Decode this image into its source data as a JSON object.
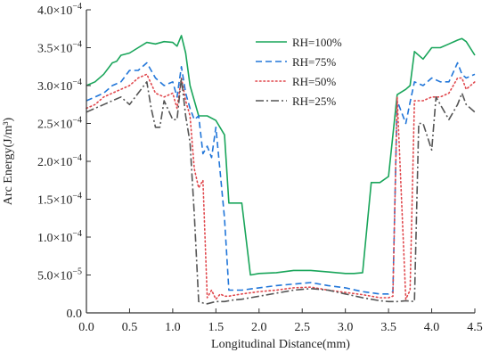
{
  "chart_data": {
    "type": "line",
    "title": "",
    "xlabel": "Longitudinal Distance(mm)",
    "ylabel": "Arc Energy(J/m³)",
    "xlim": [
      0.0,
      4.5
    ],
    "ylim": [
      0.0,
      0.0004
    ],
    "xticks": [
      {
        "value": 0.0,
        "label": "0.0"
      },
      {
        "value": 0.5,
        "label": "0.5"
      },
      {
        "value": 1.0,
        "label": "1.0"
      },
      {
        "value": 1.5,
        "label": "1.5"
      },
      {
        "value": 2.0,
        "label": "2.0"
      },
      {
        "value": 2.5,
        "label": "2.5"
      },
      {
        "value": 3.0,
        "label": "3.0"
      },
      {
        "value": 3.5,
        "label": "3.5"
      },
      {
        "value": 4.0,
        "label": "4.0"
      },
      {
        "value": 4.5,
        "label": "4.5"
      }
    ],
    "yticks": [
      {
        "value": 0.0,
        "mantissa": "0.0",
        "exponent": ""
      },
      {
        "value": 5e-05,
        "mantissa": "5.0×10",
        "exponent": "−5"
      },
      {
        "value": 0.0001,
        "mantissa": "1.0×10",
        "exponent": "−4"
      },
      {
        "value": 0.00015,
        "mantissa": "1.5×10",
        "exponent": "−4"
      },
      {
        "value": 0.0002,
        "mantissa": "2.0×10",
        "exponent": "−4"
      },
      {
        "value": 0.00025,
        "mantissa": "2.5×10",
        "exponent": "−4"
      },
      {
        "value": 0.0003,
        "mantissa": "3.0×10",
        "exponent": "−4"
      },
      {
        "value": 0.00035,
        "mantissa": "3.5×10",
        "exponent": "−4"
      },
      {
        "value": 0.0004,
        "mantissa": "4.0×10",
        "exponent": "−4"
      }
    ],
    "grid": false,
    "legend_position": "top-center",
    "series": [
      {
        "name": "RH=100%",
        "color": "#19a55a",
        "dash": "solid",
        "x": [
          0.0,
          0.1,
          0.2,
          0.3,
          0.35,
          0.4,
          0.5,
          0.6,
          0.7,
          0.8,
          0.9,
          1.0,
          1.05,
          1.1,
          1.15,
          1.2,
          1.3,
          1.4,
          1.5,
          1.6,
          1.65,
          1.7,
          1.8,
          1.9,
          2.0,
          2.2,
          2.4,
          2.6,
          2.8,
          3.0,
          3.1,
          3.2,
          3.3,
          3.4,
          3.5,
          3.6,
          3.7,
          3.75,
          3.8,
          3.9,
          4.0,
          4.1,
          4.2,
          4.3,
          4.35,
          4.4,
          4.5
        ],
        "values": [
          0.0003,
          0.000305,
          0.000315,
          0.00033,
          0.000332,
          0.00034,
          0.000343,
          0.00035,
          0.000357,
          0.000355,
          0.000358,
          0.000357,
          0.000352,
          0.000366,
          0.000343,
          0.0003,
          0.00026,
          0.00026,
          0.000254,
          0.000235,
          0.000145,
          0.000145,
          0.000145,
          5e-05,
          5.2e-05,
          5.3e-05,
          5.6e-05,
          5.6e-05,
          5.4e-05,
          5.2e-05,
          5.2e-05,
          5.3e-05,
          0.000172,
          0.000172,
          0.00018,
          0.000288,
          0.000295,
          0.0003,
          0.000345,
          0.000335,
          0.00035,
          0.00035,
          0.000355,
          0.00036,
          0.000362,
          0.000358,
          0.00034
        ]
      },
      {
        "name": "RH=75%",
        "color": "#2176d9",
        "dash": "dashed",
        "x": [
          0.0,
          0.1,
          0.2,
          0.3,
          0.4,
          0.5,
          0.6,
          0.7,
          0.8,
          0.9,
          1.0,
          1.05,
          1.1,
          1.15,
          1.2,
          1.25,
          1.3,
          1.35,
          1.4,
          1.45,
          1.5,
          1.55,
          1.6,
          1.65,
          1.7,
          1.8,
          2.0,
          2.2,
          2.4,
          2.6,
          2.8,
          3.0,
          3.2,
          3.4,
          3.5,
          3.55,
          3.6,
          3.7,
          3.75,
          3.8,
          3.9,
          4.0,
          4.1,
          4.2,
          4.3,
          4.35,
          4.4,
          4.5
        ],
        "values": [
          0.00028,
          0.000285,
          0.00029,
          0.0003,
          0.000305,
          0.00032,
          0.00032,
          0.00033,
          0.00031,
          0.0003,
          0.000305,
          0.000285,
          0.000325,
          0.00029,
          0.00027,
          0.000255,
          0.00026,
          0.00021,
          0.00022,
          0.000205,
          0.000245,
          0.000185,
          0.000125,
          3e-05,
          3e-05,
          3e-05,
          3.3e-05,
          3.6e-05,
          3.8e-05,
          4e-05,
          3.6e-05,
          3.3e-05,
          2.8e-05,
          2.5e-05,
          2.5e-05,
          2.8e-05,
          0.00028,
          0.00025,
          0.000278,
          0.000305,
          0.0003,
          0.00031,
          0.000305,
          0.000305,
          0.00033,
          0.000315,
          0.00031,
          0.000315
        ]
      },
      {
        "name": "RH=50%",
        "color": "#e0474c",
        "dash": "dotted",
        "x": [
          0.0,
          0.1,
          0.2,
          0.3,
          0.4,
          0.5,
          0.6,
          0.7,
          0.8,
          0.9,
          1.0,
          1.05,
          1.1,
          1.15,
          1.2,
          1.25,
          1.3,
          1.35,
          1.4,
          1.45,
          1.5,
          1.55,
          1.6,
          1.65,
          1.7,
          1.8,
          2.0,
          2.2,
          2.4,
          2.6,
          2.8,
          3.0,
          3.2,
          3.4,
          3.5,
          3.55,
          3.6,
          3.7,
          3.75,
          3.8,
          3.9,
          4.0,
          4.1,
          4.2,
          4.3,
          4.35,
          4.4,
          4.5
        ],
        "values": [
          0.00027,
          0.000275,
          0.000285,
          0.00029,
          0.000295,
          0.0003,
          0.00031,
          0.000315,
          0.00029,
          0.000285,
          0.00029,
          0.00027,
          0.00031,
          0.00028,
          0.00026,
          0.00019,
          0.000165,
          0.000175,
          2e-05,
          3e-05,
          1.8e-05,
          2.5e-05,
          2.2e-05,
          2.2e-05,
          2.3e-05,
          2.5e-05,
          2.8e-05,
          3e-05,
          3.3e-05,
          3.4e-05,
          3e-05,
          2.7e-05,
          2.4e-05,
          2e-05,
          2e-05,
          2.2e-05,
          0.000285,
          1.8e-05,
          3e-05,
          0.00028,
          0.00028,
          0.000285,
          0.000285,
          0.00029,
          0.00031,
          0.00031,
          0.000295,
          0.000305
        ]
      },
      {
        "name": "RH=25%",
        "color": "#555555",
        "dash": "dashdot",
        "x": [
          0.0,
          0.1,
          0.2,
          0.3,
          0.4,
          0.5,
          0.6,
          0.7,
          0.75,
          0.8,
          0.85,
          0.9,
          1.0,
          1.05,
          1.1,
          1.15,
          1.2,
          1.25,
          1.3,
          1.35,
          1.4,
          1.5,
          1.6,
          1.7,
          1.8,
          2.0,
          2.2,
          2.4,
          2.6,
          2.8,
          3.0,
          3.2,
          3.4,
          3.5,
          3.6,
          3.7,
          3.8,
          3.85,
          3.9,
          4.0,
          4.05,
          4.1,
          4.2,
          4.3,
          4.35,
          4.4,
          4.5
        ],
        "values": [
          0.000265,
          0.00027,
          0.000275,
          0.00028,
          0.000285,
          0.000275,
          0.00029,
          0.000305,
          0.00027,
          0.000245,
          0.000245,
          0.00028,
          0.000255,
          0.000255,
          0.00031,
          0.00026,
          0.000225,
          0.00013,
          1.5e-05,
          1.3e-05,
          1.2e-05,
          1.5e-05,
          1.5e-05,
          1.7e-05,
          1.8e-05,
          2.2e-05,
          2.6e-05,
          3e-05,
          3.2e-05,
          3e-05,
          2.5e-05,
          2e-05,
          1.6e-05,
          1.5e-05,
          1.5e-05,
          1.6e-05,
          1.5e-05,
          0.00025,
          0.00025,
          0.000215,
          0.000285,
          0.000275,
          0.000255,
          0.000275,
          0.00029,
          0.000275,
          0.000265
        ]
      }
    ]
  }
}
